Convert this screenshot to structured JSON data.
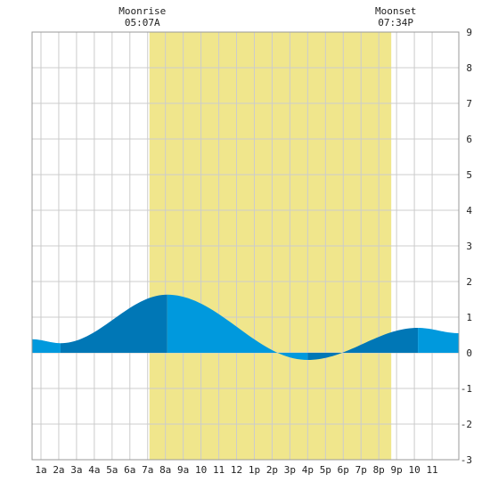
{
  "chart_data": {
    "type": "area",
    "title": "",
    "xlabel": "",
    "ylabel": "",
    "xlim": [
      0.5,
      24.5
    ],
    "ylim": [
      -3,
      9
    ],
    "y_ticks": [
      -3,
      -2,
      -1,
      0,
      1,
      2,
      3,
      4,
      5,
      6,
      7,
      8,
      9
    ],
    "y_axis_side": "right",
    "x_ticks": [
      {
        "x": 1,
        "label": "1a"
      },
      {
        "x": 2,
        "label": "2a"
      },
      {
        "x": 3,
        "label": "3a"
      },
      {
        "x": 4,
        "label": "4a"
      },
      {
        "x": 5,
        "label": "5a"
      },
      {
        "x": 6,
        "label": "6a"
      },
      {
        "x": 7,
        "label": "7a"
      },
      {
        "x": 8,
        "label": "8a"
      },
      {
        "x": 9,
        "label": "9a"
      },
      {
        "x": 10,
        "label": "10"
      },
      {
        "x": 11,
        "label": "11"
      },
      {
        "x": 12,
        "label": "12"
      },
      {
        "x": 13,
        "label": "1p"
      },
      {
        "x": 14,
        "label": "2p"
      },
      {
        "x": 15,
        "label": "3p"
      },
      {
        "x": 16,
        "label": "4p"
      },
      {
        "x": 17,
        "label": "5p"
      },
      {
        "x": 18,
        "label": "6p"
      },
      {
        "x": 19,
        "label": "7p"
      },
      {
        "x": 20,
        "label": "8p"
      },
      {
        "x": 21,
        "label": "9p"
      },
      {
        "x": 22,
        "label": "10"
      },
      {
        "x": 23,
        "label": "11"
      }
    ],
    "grid": true,
    "moon": {
      "rise_label": "Moonrise",
      "rise_time": "05:07A",
      "rise_x": 7.1,
      "set_label": "Moonset",
      "set_time": "07:34P",
      "set_x": 20.7
    },
    "tide_extremes": [
      {
        "x": 0.5,
        "y": 0.38
      },
      {
        "x": 2.1,
        "y": 0.27
      },
      {
        "x": 8.1,
        "y": 1.63
      },
      {
        "x": 16.0,
        "y": -0.2
      },
      {
        "x": 22.2,
        "y": 0.7
      },
      {
        "x": 24.5,
        "y": 0.55
      }
    ],
    "colors": {
      "falling": "#0099dd",
      "rising": "#0077b6",
      "moon_band": "#f0e68c",
      "grid": "#cccccc",
      "frame": "#999999",
      "background": "#ffffff"
    }
  }
}
